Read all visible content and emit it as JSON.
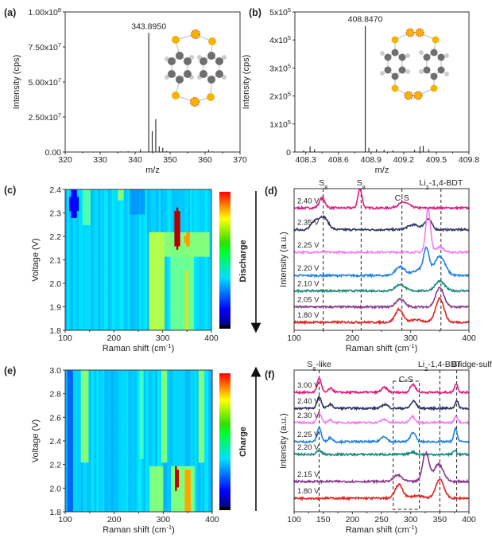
{
  "chart_data": [
    {
      "id": "a",
      "panel_label": "(a)",
      "type": "bar",
      "xlabel": "m/z",
      "ylabel": "Intensity (cps)",
      "xlim": [
        320,
        370
      ],
      "ylim": [
        0,
        100000000
      ],
      "xticks": [
        320,
        330,
        340,
        350,
        360,
        370
      ],
      "yticks": [
        {
          "v": 0,
          "label": "0.00"
        },
        {
          "v": 25000000,
          "label": "2.50x10{^7}"
        },
        {
          "v": 50000000,
          "label": "5.00x10{^7}"
        },
        {
          "v": 75000000,
          "label": "7.50x10{^7}"
        },
        {
          "v": 100000000,
          "label": "1.00x10{^8}"
        }
      ],
      "peaks": [
        [
          336.0,
          400000
        ],
        [
          338.0,
          500000
        ],
        [
          341.5,
          2000000
        ],
        [
          343.895,
          85000000
        ],
        [
          344.9,
          15000000
        ],
        [
          345.9,
          23500000
        ],
        [
          346.9,
          4000000
        ],
        [
          347.9,
          3000000
        ],
        [
          349.0,
          600000
        ],
        [
          361.0,
          1500000
        ],
        [
          362.0,
          500000
        ]
      ],
      "annotation": {
        "text": "343.8950",
        "x": 343.895
      }
    },
    {
      "id": "b",
      "panel_label": "(b)",
      "type": "bar",
      "xlabel": "m/z",
      "ylabel": "Intensity (cps)",
      "xlim": [
        408.2,
        409.8
      ],
      "ylim": [
        0,
        500000
      ],
      "xticks": [
        408.3,
        408.6,
        408.9,
        409.2,
        409.5,
        409.8
      ],
      "yticks": [
        {
          "v": 0,
          "label": "0"
        },
        {
          "v": 100000,
          "label": "1x10{^5}"
        },
        {
          "v": 200000,
          "label": "2x10{^5}"
        },
        {
          "v": 300000,
          "label": "3x10{^5}"
        },
        {
          "v": 400000,
          "label": "4x10{^5}"
        },
        {
          "v": 500000,
          "label": "5x10{^5}"
        }
      ],
      "peaks": [
        [
          408.28,
          6000
        ],
        [
          408.34,
          20000
        ],
        [
          408.38,
          10000
        ],
        [
          408.847,
          450000
        ],
        [
          408.88,
          15000
        ],
        [
          408.95,
          10000
        ],
        [
          409.02,
          8000
        ],
        [
          409.1,
          6000
        ],
        [
          409.3,
          8000
        ],
        [
          409.35,
          20000
        ],
        [
          409.38,
          22000
        ],
        [
          409.43,
          10000
        ]
      ],
      "annotation": {
        "text": "408.8470",
        "x": 408.847
      }
    },
    {
      "id": "c",
      "panel_label": "(c)",
      "type": "heatmap",
      "xlabel": "Raman shift (cm{^-1})",
      "ylabel": "Voltage (V)",
      "xlim": [
        100,
        400
      ],
      "ylim": [
        1.8,
        2.4
      ],
      "xticks": [
        100,
        200,
        300,
        400
      ],
      "yticks": [
        1.8,
        1.9,
        2.0,
        2.1,
        2.2,
        2.3,
        2.4
      ],
      "background_level": 0.33,
      "features": [
        {
          "x": [
            108,
            128
          ],
          "v": [
            2.28,
            2.4
          ],
          "level": 0.13,
          "shape": "ellipse"
        },
        {
          "x": [
            138,
            152
          ],
          "v": [
            2.25,
            2.4
          ],
          "level": 0.45,
          "shape": "box"
        },
        {
          "x": [
            208,
            218
          ],
          "v": [
            2.36,
            2.4
          ],
          "level": 0.5,
          "shape": "box"
        },
        {
          "x": [
            232,
            262
          ],
          "v": [
            2.3,
            2.4
          ],
          "level": 0.28,
          "shape": "box"
        },
        {
          "x": [
            272,
            302
          ],
          "v": [
            1.8,
            2.22
          ],
          "level": 0.55,
          "shape": "box"
        },
        {
          "x": [
            300,
            396
          ],
          "v": [
            2.12,
            2.22
          ],
          "level": 0.5,
          "shape": "box"
        },
        {
          "x": [
            318,
            362
          ],
          "v": [
            1.8,
            2.22
          ],
          "level": 0.48,
          "shape": "box"
        },
        {
          "x": [
            323,
            337
          ],
          "v": [
            2.15,
            2.33
          ],
          "level": 0.95,
          "shape": "ellipse"
        },
        {
          "x": [
            344,
            358
          ],
          "v": [
            2.16,
            2.22
          ],
          "level": 0.72,
          "shape": "ellipse"
        },
        {
          "x": [
            347,
            353
          ],
          "v": [
            1.8,
            2.06
          ],
          "level": 0.66,
          "shape": "box"
        }
      ],
      "colorbar_label": "Discharge",
      "arrow_direction": "down"
    },
    {
      "id": "d",
      "panel_label": "(d)",
      "type": "line",
      "xlabel": "Raman shift (cm{^-1})",
      "ylabel": "Intensity (a.u.)",
      "xlim": [
        100,
        400
      ],
      "ylim": [
        0,
        8.8
      ],
      "xticks": [
        100,
        200,
        300,
        400
      ],
      "reference_lines": [
        150,
        215,
        285,
        352
      ],
      "annotations": [
        {
          "text": "S{_8}",
          "x": 150,
          "pos": "top"
        },
        {
          "text": "S{_8}",
          "x": 215,
          "pos": "top"
        },
        {
          "text": "C-S",
          "x": 285,
          "pos": "inside"
        },
        {
          "text": "Li{_2}-1,4-BDT",
          "x": 352,
          "pos": "top"
        }
      ],
      "series": [
        {
          "name": "2.40 V",
          "color": "#e8197d",
          "offset": 7.6,
          "peaks": [
            [
              148,
              0.6,
              5
            ],
            [
              213,
              1.2,
              3.5
            ],
            [
              288,
              0.35,
              9
            ]
          ]
        },
        {
          "name": "2.35 V",
          "color": "#2e3462",
          "offset": 6.25,
          "peaks": [
            [
              135,
              0.45,
              6
            ],
            [
              150,
              0.8,
              8
            ],
            [
              305,
              0.3,
              10
            ],
            [
              330,
              0.65,
              6
            ]
          ]
        },
        {
          "name": "2.25 V",
          "color": "#f07ff0",
          "offset": 4.85,
          "peaks": [
            [
              330,
              2.7,
              4
            ],
            [
              350,
              0.35,
              6
            ]
          ]
        },
        {
          "name": "2.20 V",
          "color": "#1f80e8",
          "offset": 3.4,
          "peaks": [
            [
              282,
              0.55,
              8
            ],
            [
              318,
              0.4,
              12
            ],
            [
              327,
              1.4,
              4.5
            ],
            [
              350,
              1.2,
              9
            ]
          ]
        },
        {
          "name": "2.10 V",
          "color": "#188a7c",
          "offset": 2.45,
          "peaks": [
            [
              282,
              0.4,
              8
            ],
            [
              350,
              0.6,
              8
            ]
          ]
        },
        {
          "name": "2.05 V",
          "color": "#8b3a8e",
          "offset": 1.45,
          "peaks": [
            [
              282,
              0.5,
              7
            ],
            [
              350,
              1.2,
              7
            ]
          ]
        },
        {
          "name": "1.80 V",
          "color": "#e32323",
          "offset": 0.5,
          "peaks": [
            [
              280,
              0.8,
              6.5
            ],
            [
              310,
              0.15,
              10
            ],
            [
              350,
              1.5,
              7
            ]
          ]
        }
      ]
    },
    {
      "id": "e",
      "panel_label": "(e)",
      "type": "heatmap",
      "xlabel": "Raman shift (cm{^-1})",
      "ylabel": "Voltage (V)",
      "xlim": [
        100,
        400
      ],
      "ylim": [
        1.8,
        3.0
      ],
      "xticks": [
        100,
        200,
        300,
        400
      ],
      "yticks": [
        1.8,
        2.0,
        2.2,
        2.4,
        2.6,
        2.8,
        3.0
      ],
      "background_level": 0.33,
      "features": [
        {
          "x": [
            104,
            116
          ],
          "v": [
            1.8,
            3.0
          ],
          "level": 0.22,
          "shape": "box"
        },
        {
          "x": [
            133,
            147
          ],
          "v": [
            2.21,
            3.0
          ],
          "level": 0.5,
          "shape": "box"
        },
        {
          "x": [
            251,
            259
          ],
          "v": [
            2.24,
            3.0
          ],
          "level": 0.43,
          "shape": "box"
        },
        {
          "x": [
            297,
            307
          ],
          "v": [
            2.22,
            3.0
          ],
          "level": 0.5,
          "shape": "box"
        },
        {
          "x": [
            373,
            382
          ],
          "v": [
            2.22,
            3.0
          ],
          "level": 0.5,
          "shape": "box"
        },
        {
          "x": [
            272,
            300
          ],
          "v": [
            1.8,
            2.18
          ],
          "level": 0.5,
          "shape": "box"
        },
        {
          "x": [
            318,
            365
          ],
          "v": [
            1.8,
            2.18
          ],
          "level": 0.5,
          "shape": "box"
        },
        {
          "x": [
            322,
            332
          ],
          "v": [
            1.98,
            2.18
          ],
          "level": 0.93,
          "shape": "ellipse"
        },
        {
          "x": [
            345,
            356
          ],
          "v": [
            1.8,
            2.15
          ],
          "level": 0.72,
          "shape": "box"
        }
      ],
      "colorbar_label": "Charge",
      "arrow_direction": "up"
    },
    {
      "id": "f",
      "panel_label": "(f)",
      "type": "line",
      "xlabel": "Raman shift (cm{^-1})",
      "ylabel": "Intensity (a.u.)",
      "xlim": [
        100,
        400
      ],
      "ylim": [
        0,
        8.9
      ],
      "xticks": [
        100,
        150,
        200,
        250,
        300,
        350,
        400
      ],
      "reference_lines": [
        143,
        350,
        379
      ],
      "box": {
        "x": [
          270,
          315
        ],
        "y": [
          0.15,
          8.2
        ]
      },
      "annotations": [
        {
          "text": "S{_8}-like",
          "x": 143,
          "pos": "top"
        },
        {
          "text": "C-S",
          "x": 292,
          "pos": "inside"
        },
        {
          "text": "Li{_2}-1,4-BDT",
          "x": 350,
          "pos": "top"
        },
        {
          "text": "Bridge-sulf",
          "x": 398,
          "pos": "top"
        }
      ],
      "series": [
        {
          "name": "3.00 V",
          "color": "#e8197d",
          "offset": 7.5,
          "peaks": [
            [
              143,
              0.9,
              3.5
            ],
            [
              163,
              0.25,
              4
            ],
            [
              255,
              0.3,
              5
            ],
            [
              304,
              0.5,
              4.5
            ],
            [
              378,
              0.55,
              3
            ]
          ]
        },
        {
          "name": "2.40 V",
          "color": "#2e3462",
          "offset": 6.5,
          "peaks": [
            [
              143,
              0.75,
              3.5
            ],
            [
              162,
              0.25,
              4
            ],
            [
              256,
              0.25,
              5
            ],
            [
              305,
              0.45,
              4.5
            ],
            [
              379,
              0.45,
              3
            ]
          ]
        },
        {
          "name": "2.30 V",
          "color": "#f07ff0",
          "offset": 5.6,
          "peaks": [
            [
              143,
              0.6,
              3.5
            ],
            [
              162,
              0.15,
              4
            ],
            [
              254,
              0.2,
              5
            ],
            [
              303,
              0.4,
              4.5
            ],
            [
              378,
              0.4,
              3
            ]
          ]
        },
        {
          "name": "2.25 V",
          "color": "#1f80e8",
          "offset": 4.4,
          "peaks": [
            [
              143,
              0.9,
              3.5
            ],
            [
              162,
              0.25,
              4
            ],
            [
              254,
              0.35,
              5
            ],
            [
              304,
              0.6,
              4.5
            ],
            [
              377,
              0.8,
              3
            ]
          ]
        },
        {
          "name": "2.20 V",
          "color": "#188a7c",
          "offset": 3.6,
          "peaks": [
            [
              143,
              0.25,
              4
            ],
            [
              303,
              0.15,
              5
            ],
            [
              376,
              0.25,
              3
            ]
          ]
        },
        {
          "name": "2.15 V",
          "color": "#8b3a8e",
          "offset": 1.9,
          "peaks": [
            [
              278,
              0.4,
              7
            ],
            [
              326,
              1.8,
              5.5
            ],
            [
              348,
              1.1,
              8
            ]
          ]
        },
        {
          "name": "1.80 V",
          "color": "#e32323",
          "offset": 0.85,
          "peaks": [
            [
              280,
              0.85,
              6.5
            ],
            [
              310,
              0.15,
              10
            ],
            [
              350,
              1.2,
              7
            ]
          ]
        }
      ]
    }
  ]
}
